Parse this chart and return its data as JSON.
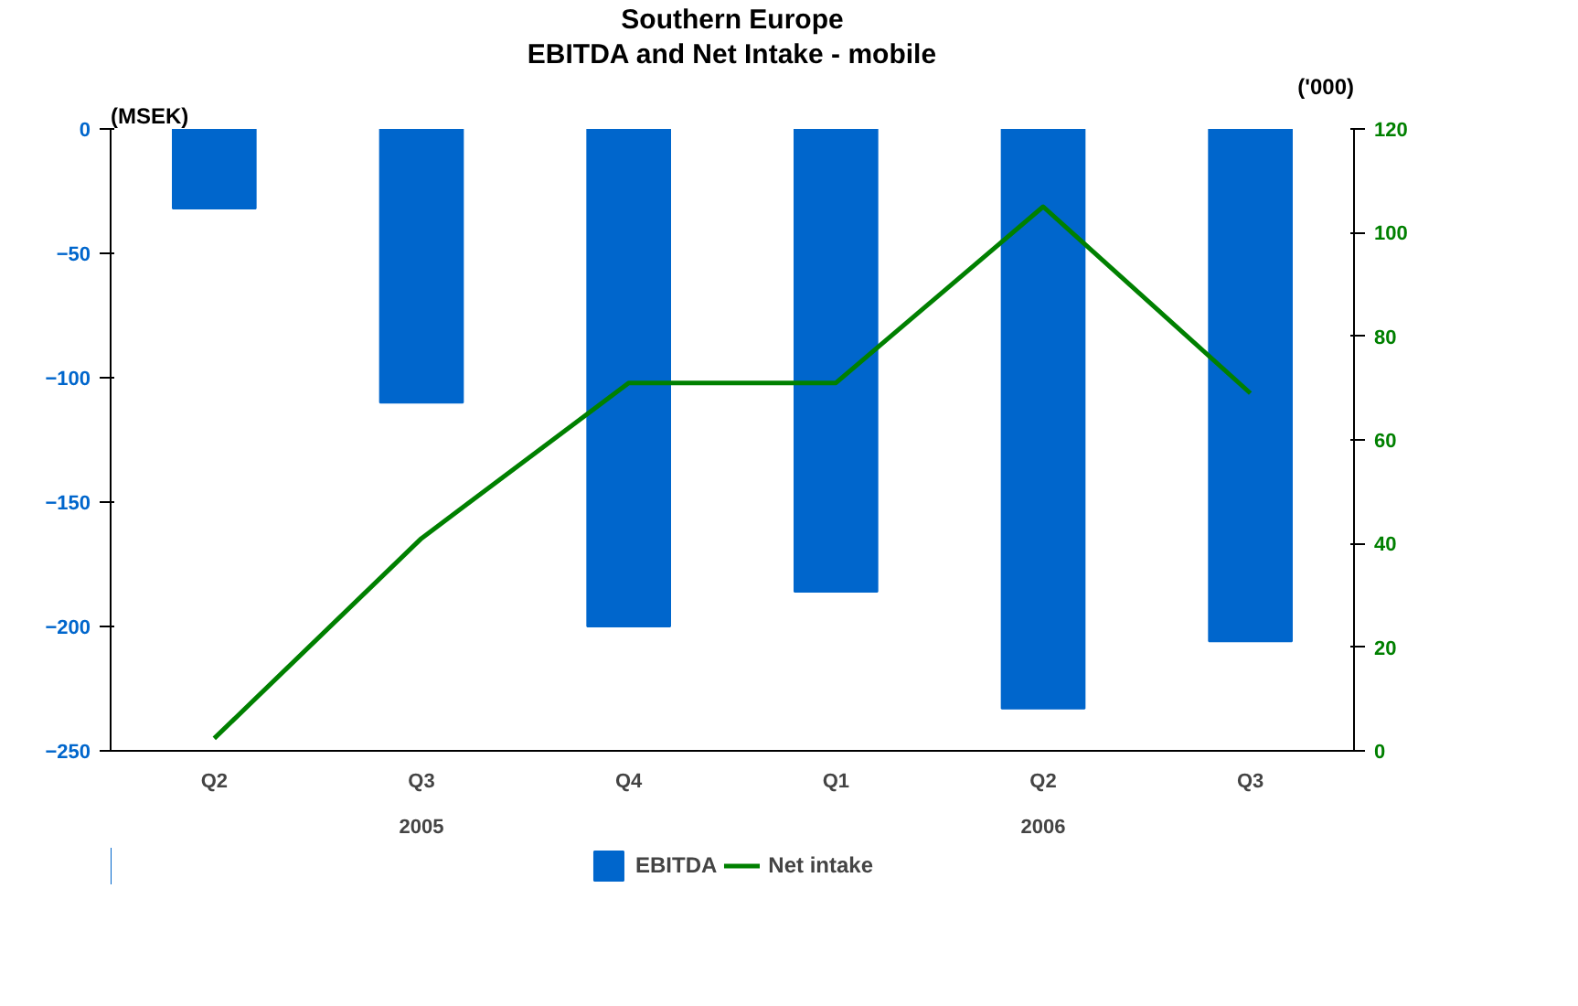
{
  "chart_data": {
    "type": "bar",
    "title": "Southern Europe",
    "subtitle": "EBITDA and Net Intake - mobile",
    "ylabel": "(MSEK)",
    "y2label": "('000)",
    "categories": [
      "Q2",
      "Q3",
      "Q4",
      "Q1",
      "Q2",
      "Q3"
    ],
    "annotations": [
      "2005",
      "2006"
    ],
    "series": [
      {
        "name": "EBITDA",
        "color": "#0066cc",
        "values": [
          -32,
          -110,
          -200,
          -186,
          -233,
          -206
        ]
      },
      {
        "name": "Net intake",
        "type": "line",
        "axis": "y2",
        "color": "#008000",
        "values": [
          2.4,
          41,
          71,
          71,
          105,
          69
        ]
      }
    ],
    "ylim": [
      -250,
      0
    ],
    "yticks": [
      -250,
      -200,
      -150,
      -100,
      -50,
      0
    ],
    "y2lim": [
      0,
      120
    ],
    "y2ticks": [
      0,
      20,
      40,
      60,
      80,
      100,
      120
    ],
    "grid": false,
    "legend": "bottom"
  }
}
